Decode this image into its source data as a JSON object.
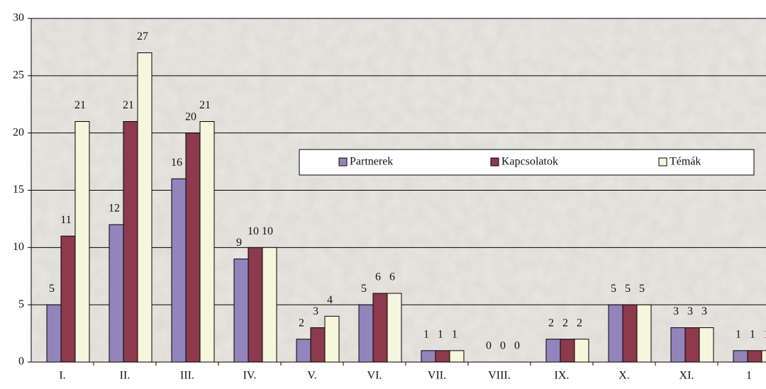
{
  "chart_data": {
    "type": "bar",
    "categories": [
      "I.",
      "II.",
      "III.",
      "IV.",
      "V.",
      "VI.",
      "VII.",
      "VIII.",
      "IX.",
      "X.",
      "XI.",
      "1"
    ],
    "series": [
      {
        "name": "Partnerek",
        "color": "#9384bc",
        "values": [
          5,
          12,
          16,
          9,
          2,
          5,
          1,
          0,
          2,
          5,
          3,
          1
        ]
      },
      {
        "name": "Kapcsolatok",
        "color": "#8c3a4c",
        "values": [
          11,
          21,
          20,
          10,
          3,
          6,
          1,
          0,
          2,
          5,
          3,
          1
        ]
      },
      {
        "name": "Témák",
        "color": "#f6f6dc",
        "values": [
          21,
          27,
          21,
          10,
          4,
          6,
          1,
          0,
          2,
          5,
          3,
          1
        ]
      }
    ],
    "ylim": [
      0,
      30
    ],
    "yticks": [
      0,
      5,
      10,
      15,
      20,
      25,
      30
    ],
    "grid": true,
    "legend": "right"
  }
}
